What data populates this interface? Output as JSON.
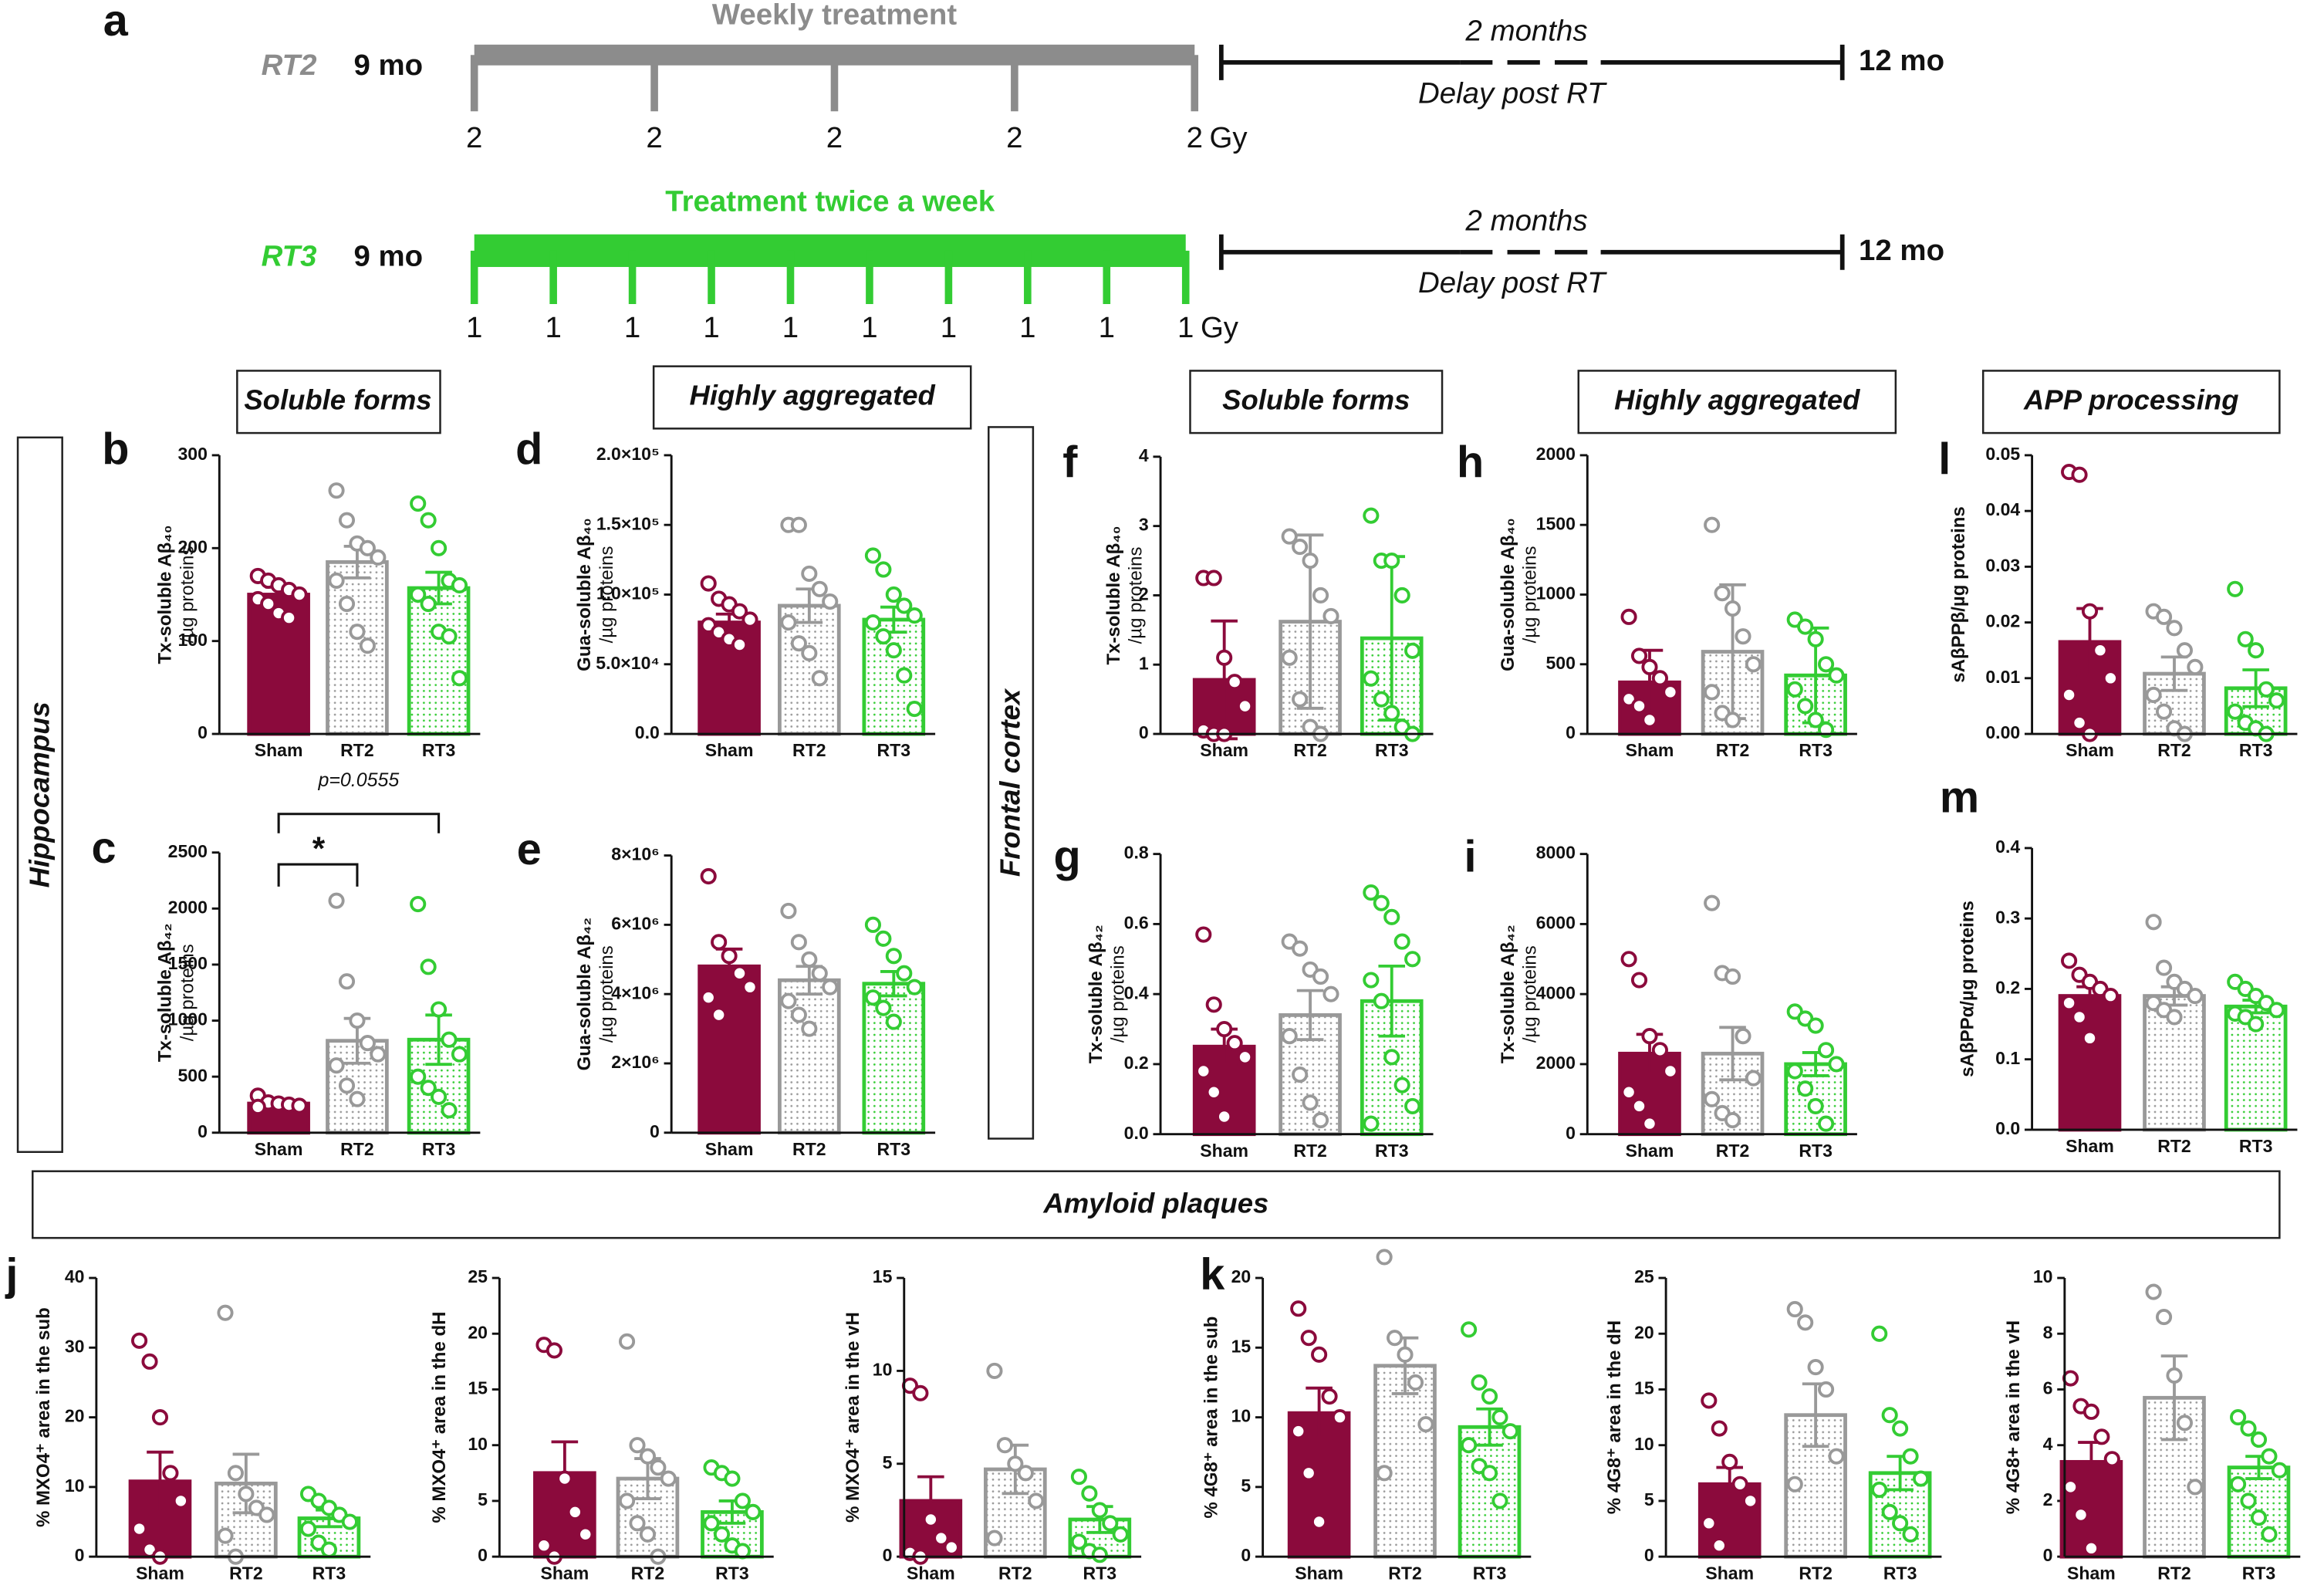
{
  "timeline": {
    "panel": "a",
    "rows": [
      {
        "name": "RT2",
        "start": "9 mo",
        "header": "Weekly treatment",
        "doses": [
          "2",
          "2",
          "2",
          "2",
          "2"
        ],
        "unit": "Gy",
        "delay_top": "2 months",
        "delay_bottom": "Delay post RT",
        "end": "12 mo",
        "color": "#8c8c8c"
      },
      {
        "name": "RT3",
        "start": "9 mo",
        "header": "Treatment twice a week",
        "doses": [
          "1",
          "1",
          "1",
          "1",
          "1",
          "1",
          "1",
          "1",
          "1",
          "1"
        ],
        "unit": "Gy",
        "delay_top": "2 months",
        "delay_bottom": "Delay post RT",
        "end": "12 mo",
        "color": "#33cc33"
      }
    ]
  },
  "headers": [
    "Soluble forms",
    "Highly aggregated",
    "Soluble forms",
    "Highly aggregated",
    "APP processing"
  ],
  "regions": [
    "Hippocampus",
    "Frontal cortex",
    "Amyloid plaques"
  ],
  "chart_data": [
    {
      "type": "bar",
      "panel": "b",
      "ylabel": [
        "Tx-soluble Aβ₄₀",
        "/µg proteins"
      ],
      "categories": [
        "Sham",
        "RT2",
        "RT3"
      ],
      "colors": [
        "#8b0a3c",
        "#999999",
        "#33cc33"
      ],
      "values": [
        150,
        185,
        157
      ],
      "errors": [
        8,
        17,
        17
      ],
      "points": [
        [
          170,
          165,
          160,
          155,
          150,
          145,
          140,
          130,
          125
        ],
        [
          262,
          230,
          205,
          200,
          190,
          165,
          140,
          110,
          95
        ],
        [
          248,
          230,
          200,
          165,
          160,
          150,
          140,
          110,
          105,
          60
        ]
      ],
      "ylim": [
        0,
        300
      ],
      "yticks": [
        0,
        100,
        200,
        300
      ]
    },
    {
      "type": "bar",
      "panel": "c",
      "ylabel": [
        "Tx-soluble Aβ₄₂",
        "/µg proteins"
      ],
      "categories": [
        "Sham",
        "RT2",
        "RT3"
      ],
      "colors": [
        "#8b0a3c",
        "#999999",
        "#33cc33"
      ],
      "values": [
        260,
        820,
        830
      ],
      "errors": [
        20,
        200,
        220
      ],
      "points": [
        [
          330,
          270,
          260,
          250,
          240,
          230
        ],
        [
          2070,
          1350,
          1000,
          800,
          700,
          600,
          420,
          300
        ],
        [
          2040,
          1480,
          1100,
          830,
          700,
          500,
          400,
          320,
          200
        ]
      ],
      "ylim": [
        0,
        2500
      ],
      "yticks": [
        0,
        500,
        1000,
        1500,
        2000,
        2500
      ],
      "annotations": [
        "*",
        "p=0.0555"
      ]
    },
    {
      "type": "bar",
      "panel": "d",
      "ylabel": [
        "Gua-soluble Aβ₄₀",
        "/µg proteins"
      ],
      "categories": [
        "Sham",
        "RT2",
        "RT3"
      ],
      "colors": [
        "#8b0a3c",
        "#999999",
        "#33cc33"
      ],
      "values": [
        80000,
        92000,
        82000
      ],
      "errors": [
        6000,
        12000,
        9000
      ],
      "points": [
        [
          108000,
          97000,
          93000,
          88000,
          82000,
          78000,
          73000,
          68000,
          64000
        ],
        [
          150000,
          150000,
          115000,
          104000,
          95000,
          80000,
          65000,
          58000,
          40000
        ],
        [
          128000,
          118000,
          100000,
          92000,
          85000,
          80000,
          70000,
          60000,
          42000,
          18000
        ]
      ],
      "ylim": [
        0,
        200000
      ],
      "yticks": [
        {
          "value": 0,
          "label": "0.0"
        },
        {
          "value": 50000,
          "label": "5.0×10⁴"
        },
        {
          "value": 100000,
          "label": "1.0×10⁵"
        },
        {
          "value": 150000,
          "label": "1.5×10⁵"
        },
        {
          "value": 200000,
          "label": "2.0×10⁵"
        }
      ]
    },
    {
      "type": "bar",
      "panel": "e",
      "ylabel": [
        "Gua-soluble Aβ₄₂",
        "/µg proteins"
      ],
      "categories": [
        "Sham",
        "RT2",
        "RT3"
      ],
      "colors": [
        "#8b0a3c",
        "#999999",
        "#33cc33"
      ],
      "values": [
        4800000,
        4400000,
        4300000
      ],
      "errors": [
        500000,
        400000,
        350000
      ],
      "points": [
        [
          7400000,
          5500000,
          5100000,
          4600000,
          4200000,
          3900000,
          3400000
        ],
        [
          6400000,
          5500000,
          5000000,
          4600000,
          4200000,
          3800000,
          3400000,
          3000000
        ],
        [
          6000000,
          5600000,
          5100000,
          4600000,
          4200000,
          3900000,
          3600000,
          3200000
        ]
      ],
      "ylim": [
        0,
        8000000
      ],
      "yticks": [
        0,
        {
          "value": 2000000,
          "label": "2×10⁶"
        },
        {
          "value": 4000000,
          "label": "4×10⁶"
        },
        {
          "value": 6000000,
          "label": "6×10⁶"
        },
        {
          "value": 8000000,
          "label": "8×10⁶"
        }
      ]
    },
    {
      "type": "bar",
      "panel": "f",
      "ylabel": [
        "Tx-soluble Aβ₄₀",
        "/µg proteins"
      ],
      "categories": [
        "Sham",
        "RT2",
        "RT3"
      ],
      "colors": [
        "#8b0a3c",
        "#999999",
        "#33cc33"
      ],
      "values": [
        0.78,
        1.62,
        1.38
      ],
      "errors": [
        0.85,
        1.25,
        1.18
      ],
      "points": [
        [
          2.25,
          2.25,
          1.1,
          0.75,
          0.4,
          0.05,
          0,
          0
        ],
        [
          2.85,
          2.7,
          2.5,
          2.0,
          1.7,
          1.1,
          0.5,
          0.1,
          0
        ],
        [
          3.15,
          2.5,
          2.5,
          2.0,
          1.2,
          0.8,
          0.5,
          0.3,
          0.1,
          0
        ]
      ],
      "ylim": [
        0,
        4
      ],
      "yticks": [
        0,
        1,
        2,
        3,
        4
      ]
    },
    {
      "type": "bar",
      "panel": "g",
      "ylabel": [
        "Tx-soluble Aβ₄₂",
        "/µg proteins"
      ],
      "categories": [
        "Sham",
        "RT2",
        "RT3"
      ],
      "colors": [
        "#8b0a3c",
        "#999999",
        "#33cc33"
      ],
      "values": [
        0.25,
        0.34,
        0.38
      ],
      "errors": [
        0.05,
        0.07,
        0.1
      ],
      "points": [
        [
          0.57,
          0.37,
          0.3,
          0.26,
          0.22,
          0.18,
          0.12,
          0.05
        ],
        [
          0.55,
          0.53,
          0.47,
          0.45,
          0.4,
          0.28,
          0.17,
          0.09,
          0.04
        ],
        [
          0.69,
          0.66,
          0.62,
          0.55,
          0.5,
          0.44,
          0.38,
          0.22,
          0.14,
          0.08,
          0.03
        ]
      ],
      "ylim": [
        0,
        0.8
      ],
      "yticks": [
        {
          "value": 0,
          "label": "0.0"
        },
        0.2,
        0.4,
        0.6,
        0.8
      ]
    },
    {
      "type": "bar",
      "panel": "h",
      "ylabel": [
        "Gua-soluble Aβ₄₀",
        "/µg proteins"
      ],
      "categories": [
        "Sham",
        "RT2",
        "RT3"
      ],
      "colors": [
        "#8b0a3c",
        "#999999",
        "#33cc33"
      ],
      "values": [
        370,
        590,
        420
      ],
      "errors": [
        230,
        480,
        340
      ],
      "points": [
        [
          840,
          560,
          480,
          400,
          300,
          250,
          200,
          100
        ],
        [
          1500,
          1010,
          900,
          700,
          500,
          300,
          150,
          100
        ],
        [
          820,
          770,
          680,
          500,
          420,
          320,
          200,
          100,
          30
        ]
      ],
      "ylim": [
        0,
        2000
      ],
      "yticks": [
        0,
        500,
        1000,
        1500,
        2000
      ]
    },
    {
      "type": "bar",
      "panel": "i",
      "ylabel": [
        "Tx-soluble Aβ₄₂",
        "/µg proteins"
      ],
      "categories": [
        "Sham",
        "RT2",
        "RT3"
      ],
      "colors": [
        "#8b0a3c",
        "#999999",
        "#33cc33"
      ],
      "values": [
        2300,
        2300,
        2000
      ],
      "errors": [
        550,
        750,
        330
      ],
      "points": [
        [
          5000,
          4400,
          2800,
          2400,
          1800,
          1200,
          800,
          300
        ],
        [
          6600,
          4600,
          4500,
          2800,
          1600,
          1000,
          600,
          400
        ],
        [
          3500,
          3300,
          3100,
          2400,
          2000,
          1800,
          1300,
          800,
          300
        ]
      ],
      "ylim": [
        0,
        8000
      ],
      "yticks": [
        0,
        2000,
        4000,
        6000,
        8000
      ]
    },
    {
      "type": "bar",
      "panel": "l",
      "ylabel": [
        "sAβPPβ/µg proteins"
      ],
      "categories": [
        "Sham",
        "RT2",
        "RT3"
      ],
      "colors": [
        "#8b0a3c",
        "#999999",
        "#33cc33"
      ],
      "values": [
        0.0165,
        0.0108,
        0.0082
      ],
      "errors": [
        0.006,
        0.003,
        0.0033
      ],
      "points": [
        [
          0.047,
          0.0465,
          0.022,
          0.015,
          0.01,
          0.007,
          0.002,
          0
        ],
        [
          0.022,
          0.021,
          0.019,
          0.015,
          0.012,
          0.007,
          0.004,
          0.001,
          0
        ],
        [
          0.026,
          0.017,
          0.015,
          0.008,
          0.006,
          0.004,
          0.002,
          0.001,
          0
        ]
      ],
      "ylim": [
        0,
        0.05
      ],
      "yticks": [
        {
          "value": 0,
          "label": "0.00"
        },
        0.01,
        0.02,
        0.03,
        0.04,
        0.05
      ]
    },
    {
      "type": "bar",
      "panel": "m",
      "ylabel": [
        "sAβPPα/µg proteins"
      ],
      "categories": [
        "Sham",
        "RT2",
        "RT3"
      ],
      "colors": [
        "#8b0a3c",
        "#999999",
        "#33cc33"
      ],
      "values": [
        0.19,
        0.19,
        0.175
      ],
      "errors": [
        0.013,
        0.013,
        0.009
      ],
      "points": [
        [
          0.24,
          0.22,
          0.21,
          0.2,
          0.19,
          0.18,
          0.16,
          0.13
        ],
        [
          0.295,
          0.23,
          0.21,
          0.2,
          0.19,
          0.18,
          0.17,
          0.16
        ],
        [
          0.21,
          0.2,
          0.19,
          0.18,
          0.17,
          0.165,
          0.16,
          0.15
        ]
      ],
      "ylim": [
        0,
        0.4
      ],
      "yticks": [
        {
          "value": 0,
          "label": "0.0"
        },
        0.1,
        0.2,
        0.3,
        0.4
      ]
    },
    {
      "type": "bar",
      "panel": "j",
      "ylabel": [
        "% MXO4⁺ area in the sub"
      ],
      "categories": [
        "Sham",
        "RT2",
        "RT3"
      ],
      "colors": [
        "#8b0a3c",
        "#999999",
        "#33cc33"
      ],
      "values": [
        10.8,
        10.5,
        5.5
      ],
      "errors": [
        4.2,
        4.2,
        1.2
      ],
      "points": [
        [
          31,
          28,
          20,
          12,
          8,
          4,
          1,
          0
        ],
        [
          35,
          12,
          9,
          7,
          6,
          3,
          0
        ],
        [
          9,
          8,
          7,
          6,
          5,
          4,
          2,
          1
        ]
      ],
      "ylim": [
        0,
        40
      ],
      "yticks": [
        0,
        10,
        20,
        30,
        40
      ]
    },
    {
      "type": "bar",
      "ylabel": [
        "% MXO4⁺ area in the dH"
      ],
      "categories": [
        "Sham",
        "RT2",
        "RT3"
      ],
      "colors": [
        "#8b0a3c",
        "#999999",
        "#33cc33"
      ],
      "values": [
        7.5,
        7,
        4
      ],
      "errors": [
        2.8,
        1.8,
        1
      ],
      "points": [
        [
          19,
          18.5,
          7,
          4,
          2,
          1,
          0
        ],
        [
          19.3,
          10,
          9,
          8,
          7,
          5,
          3,
          2,
          0
        ],
        [
          8,
          7.5,
          7,
          5,
          4,
          3,
          2,
          1,
          0.5
        ]
      ],
      "ylim": [
        0,
        25
      ],
      "yticks": [
        0,
        5,
        10,
        15,
        20,
        25
      ]
    },
    {
      "type": "bar",
      "ylabel": [
        "% MXO4⁺ area in the vH"
      ],
      "categories": [
        "Sham",
        "RT2",
        "RT3"
      ],
      "colors": [
        "#8b0a3c",
        "#999999",
        "#33cc33"
      ],
      "values": [
        3,
        4.7,
        2
      ],
      "errors": [
        1.3,
        1.3,
        0.7
      ],
      "points": [
        [
          9.2,
          8.8,
          2,
          1,
          0.5,
          0.2,
          0
        ],
        [
          10,
          6,
          5,
          4.5,
          3,
          1
        ],
        [
          4.3,
          3.4,
          2.5,
          1.8,
          1.2,
          0.8,
          0.3,
          0.1
        ]
      ],
      "ylim": [
        0,
        15
      ],
      "yticks": [
        0,
        5,
        10,
        15
      ]
    },
    {
      "type": "bar",
      "panel": "k",
      "ylabel": [
        "% 4G8⁺ area in the sub"
      ],
      "categories": [
        "Sham",
        "RT2",
        "RT3"
      ],
      "colors": [
        "#8b0a3c",
        "#999999",
        "#33cc33"
      ],
      "values": [
        10.3,
        13.7,
        9.3
      ],
      "errors": [
        1.8,
        2,
        1.3
      ],
      "points": [
        [
          17.8,
          15.7,
          14.5,
          11.5,
          10,
          9,
          6,
          2.5
        ],
        [
          21.5,
          15.7,
          14.5,
          12.5,
          9.5,
          6
        ],
        [
          16.3,
          12.5,
          11.5,
          10,
          9,
          8,
          6.5,
          6,
          4
        ]
      ],
      "ylim": [
        0,
        20
      ],
      "yticks": [
        0,
        5,
        10,
        15,
        20
      ]
    },
    {
      "type": "bar",
      "ylabel": [
        "% 4G8⁺ area in the dH"
      ],
      "categories": [
        "Sham",
        "RT2",
        "RT3"
      ],
      "colors": [
        "#8b0a3c",
        "#999999",
        "#33cc33"
      ],
      "values": [
        6.5,
        12.7,
        7.5
      ],
      "errors": [
        1.5,
        2.8,
        1.5
      ],
      "points": [
        [
          14,
          11.5,
          8.5,
          6.5,
          5,
          3,
          1
        ],
        [
          22.2,
          21,
          17,
          15,
          9,
          6.5
        ],
        [
          20,
          12.7,
          11.5,
          9,
          7,
          6,
          4,
          3,
          2
        ]
      ],
      "ylim": [
        0,
        25
      ],
      "yticks": [
        0,
        5,
        10,
        15,
        20,
        25
      ]
    },
    {
      "type": "bar",
      "ylabel": [
        "% 4G8+ area in the vH"
      ],
      "categories": [
        "Sham",
        "RT2",
        "RT3"
      ],
      "colors": [
        "#8b0a3c",
        "#999999",
        "#33cc33"
      ],
      "values": [
        3.4,
        5.7,
        3.2
      ],
      "errors": [
        0.7,
        1.5,
        0.4
      ],
      "points": [
        [
          6.4,
          5.4,
          5.2,
          4.3,
          3.5,
          2.5,
          1.5,
          0.3
        ],
        [
          9.5,
          8.6,
          6.5,
          4.8,
          2.5
        ],
        [
          5,
          4.6,
          4.2,
          3.6,
          3.1,
          2.6,
          2,
          1.4,
          0.8
        ]
      ],
      "ylim": [
        0,
        10
      ],
      "yticks": [
        0,
        2,
        4,
        6,
        8,
        10
      ]
    }
  ]
}
